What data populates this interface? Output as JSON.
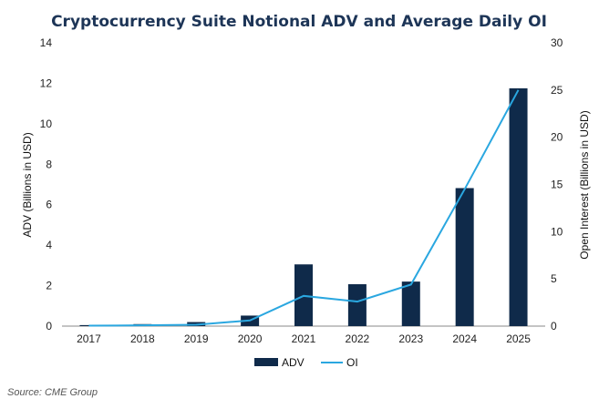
{
  "chart_data": {
    "type": "bar",
    "title": "Cryptocurrency Suite Notional ADV and Average Daily OI",
    "categories": [
      "2017",
      "2018",
      "2019",
      "2020",
      "2021",
      "2022",
      "2023",
      "2024",
      "2025"
    ],
    "series": [
      {
        "name": "ADV",
        "type": "bar",
        "axis": "left",
        "color": "#0f2a4a",
        "values": [
          0.05,
          0.1,
          0.2,
          0.52,
          3.05,
          2.07,
          2.2,
          6.82,
          11.75
        ]
      },
      {
        "name": "OI",
        "type": "line",
        "axis": "right",
        "color": "#2aa7e0",
        "values": [
          0.05,
          0.08,
          0.15,
          0.6,
          3.2,
          2.6,
          4.4,
          14.5,
          25.0
        ]
      }
    ],
    "ylabel_left": "ADV (Billions in USD)",
    "ylabel_right": "Open Interest (Billions in USD)",
    "ylim_left": [
      0,
      14
    ],
    "yticks_left": [
      "0",
      "2",
      "4",
      "6",
      "8",
      "10",
      "12",
      "14"
    ],
    "ylim_right": [
      0,
      30
    ],
    "yticks_right": [
      "0",
      "5",
      "10",
      "15",
      "20",
      "25",
      "30"
    ],
    "grid": false,
    "legend_position": "bottom",
    "source": "Source: CME Group"
  }
}
